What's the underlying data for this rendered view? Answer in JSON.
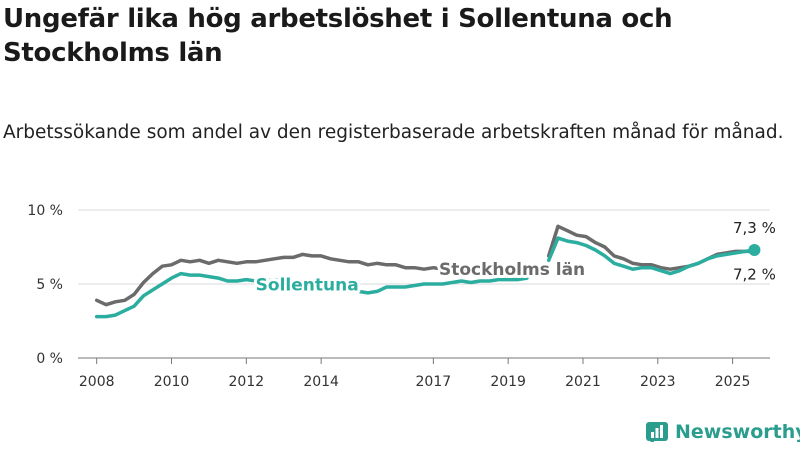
{
  "header": {
    "title": "Ungefär lika hög arbetslöshet i Sollentuna och Stockholms län",
    "subtitle": "Arbetssökande som andel av den registerbaserade arbetskraften månad för månad."
  },
  "brand": {
    "name": "Newsworthy",
    "icon": "newsworthy-logo-icon",
    "color": "#2a9d8f"
  },
  "chart_data": {
    "type": "line",
    "y_tick_labels": [
      "0 %",
      "5 %",
      "10 %"
    ],
    "x_tick_labels": [
      "2008",
      "2010",
      "2012",
      "2014",
      "2017",
      "2019",
      "2021",
      "2023",
      "2025"
    ],
    "ylim": [
      0,
      10
    ],
    "xlim": [
      "2007-07",
      "2026-01"
    ],
    "grid": "horizontal",
    "gap": [
      "2019-07",
      "2020-02"
    ],
    "end_labels": {
      "sollentuna": "7,3 %",
      "stockholms_lan": "7,2 %"
    },
    "series": [
      {
        "name": "Stockholms län",
        "color": "#6b6b6b",
        "points": [
          [
            "2008-01",
            3.9
          ],
          [
            "2008-04",
            3.6
          ],
          [
            "2008-07",
            3.8
          ],
          [
            "2008-10",
            3.9
          ],
          [
            "2009-01",
            4.3
          ],
          [
            "2009-04",
            5.1
          ],
          [
            "2009-07",
            5.7
          ],
          [
            "2009-10",
            6.2
          ],
          [
            "2010-01",
            6.3
          ],
          [
            "2010-04",
            6.6
          ],
          [
            "2010-07",
            6.5
          ],
          [
            "2010-10",
            6.6
          ],
          [
            "2011-01",
            6.4
          ],
          [
            "2011-04",
            6.6
          ],
          [
            "2011-07",
            6.5
          ],
          [
            "2011-10",
            6.4
          ],
          [
            "2012-01",
            6.5
          ],
          [
            "2012-04",
            6.5
          ],
          [
            "2012-07",
            6.6
          ],
          [
            "2012-10",
            6.7
          ],
          [
            "2013-01",
            6.8
          ],
          [
            "2013-04",
            6.8
          ],
          [
            "2013-07",
            7.0
          ],
          [
            "2013-10",
            6.9
          ],
          [
            "2014-01",
            6.9
          ],
          [
            "2014-04",
            6.7
          ],
          [
            "2014-07",
            6.6
          ],
          [
            "2014-10",
            6.5
          ],
          [
            "2015-01",
            6.5
          ],
          [
            "2015-04",
            6.3
          ],
          [
            "2015-07",
            6.4
          ],
          [
            "2015-10",
            6.3
          ],
          [
            "2016-01",
            6.3
          ],
          [
            "2016-04",
            6.1
          ],
          [
            "2016-07",
            6.1
          ],
          [
            "2016-10",
            6.0
          ],
          [
            "2017-01",
            6.1
          ],
          [
            "2017-04",
            6.0
          ],
          [
            "2017-07",
            6.1
          ],
          [
            "2017-10",
            6.0
          ],
          [
            "2018-01",
            6.1
          ],
          [
            "2018-04",
            6.0
          ],
          [
            "2018-07",
            6.0
          ],
          [
            "2018-10",
            6.0
          ],
          [
            "2019-01",
            6.1
          ],
          [
            "2019-04",
            6.0
          ],
          [
            "2019-07",
            6.0
          ],
          [
            "2020-02",
            6.9
          ],
          [
            "2020-05",
            8.9
          ],
          [
            "2020-08",
            8.6
          ],
          [
            "2020-11",
            8.3
          ],
          [
            "2021-02",
            8.2
          ],
          [
            "2021-05",
            7.8
          ],
          [
            "2021-08",
            7.5
          ],
          [
            "2021-11",
            6.9
          ],
          [
            "2022-02",
            6.7
          ],
          [
            "2022-05",
            6.4
          ],
          [
            "2022-08",
            6.3
          ],
          [
            "2022-11",
            6.3
          ],
          [
            "2023-02",
            6.1
          ],
          [
            "2023-05",
            6.0
          ],
          [
            "2023-08",
            6.1
          ],
          [
            "2023-11",
            6.2
          ],
          [
            "2024-02",
            6.4
          ],
          [
            "2024-05",
            6.7
          ],
          [
            "2024-08",
            7.0
          ],
          [
            "2024-11",
            7.1
          ],
          [
            "2025-02",
            7.2
          ],
          [
            "2025-05",
            7.2
          ],
          [
            "2025-08",
            7.2
          ]
        ]
      },
      {
        "name": "Sollentuna",
        "color": "#2bae9f",
        "points": [
          [
            "2008-01",
            2.8
          ],
          [
            "2008-04",
            2.8
          ],
          [
            "2008-07",
            2.9
          ],
          [
            "2008-10",
            3.2
          ],
          [
            "2009-01",
            3.5
          ],
          [
            "2009-04",
            4.2
          ],
          [
            "2009-07",
            4.6
          ],
          [
            "2009-10",
            5.0
          ],
          [
            "2010-01",
            5.4
          ],
          [
            "2010-04",
            5.7
          ],
          [
            "2010-07",
            5.6
          ],
          [
            "2010-10",
            5.6
          ],
          [
            "2011-01",
            5.5
          ],
          [
            "2011-04",
            5.4
          ],
          [
            "2011-07",
            5.2
          ],
          [
            "2011-10",
            5.2
          ],
          [
            "2012-01",
            5.3
          ],
          [
            "2012-04",
            5.2
          ],
          [
            "2012-07",
            5.2
          ],
          [
            "2012-10",
            5.3
          ],
          [
            "2013-01",
            5.2
          ],
          [
            "2013-04",
            5.1
          ],
          [
            "2013-07",
            5.1
          ],
          [
            "2013-10",
            5.0
          ],
          [
            "2014-01",
            4.9
          ],
          [
            "2014-04",
            4.8
          ],
          [
            "2014-07",
            4.6
          ],
          [
            "2014-10",
            4.5
          ],
          [
            "2015-01",
            4.5
          ],
          [
            "2015-04",
            4.4
          ],
          [
            "2015-07",
            4.5
          ],
          [
            "2015-10",
            4.8
          ],
          [
            "2016-01",
            4.8
          ],
          [
            "2016-04",
            4.8
          ],
          [
            "2016-07",
            4.9
          ],
          [
            "2016-10",
            5.0
          ],
          [
            "2017-01",
            5.0
          ],
          [
            "2017-04",
            5.0
          ],
          [
            "2017-07",
            5.1
          ],
          [
            "2017-10",
            5.2
          ],
          [
            "2018-01",
            5.1
          ],
          [
            "2018-04",
            5.2
          ],
          [
            "2018-07",
            5.2
          ],
          [
            "2018-10",
            5.3
          ],
          [
            "2019-01",
            5.3
          ],
          [
            "2019-04",
            5.3
          ],
          [
            "2019-07",
            5.4
          ],
          [
            "2020-02",
            6.6
          ],
          [
            "2020-05",
            8.1
          ],
          [
            "2020-08",
            7.9
          ],
          [
            "2020-11",
            7.8
          ],
          [
            "2021-02",
            7.6
          ],
          [
            "2021-05",
            7.3
          ],
          [
            "2021-08",
            6.9
          ],
          [
            "2021-11",
            6.4
          ],
          [
            "2022-02",
            6.2
          ],
          [
            "2022-05",
            6.0
          ],
          [
            "2022-08",
            6.1
          ],
          [
            "2022-11",
            6.1
          ],
          [
            "2023-02",
            5.9
          ],
          [
            "2023-05",
            5.7
          ],
          [
            "2023-08",
            5.9
          ],
          [
            "2023-11",
            6.2
          ],
          [
            "2024-02",
            6.4
          ],
          [
            "2024-05",
            6.7
          ],
          [
            "2024-08",
            6.9
          ],
          [
            "2024-11",
            7.0
          ],
          [
            "2025-02",
            7.1
          ],
          [
            "2025-05",
            7.2
          ],
          [
            "2025-08",
            7.3
          ]
        ]
      }
    ]
  }
}
